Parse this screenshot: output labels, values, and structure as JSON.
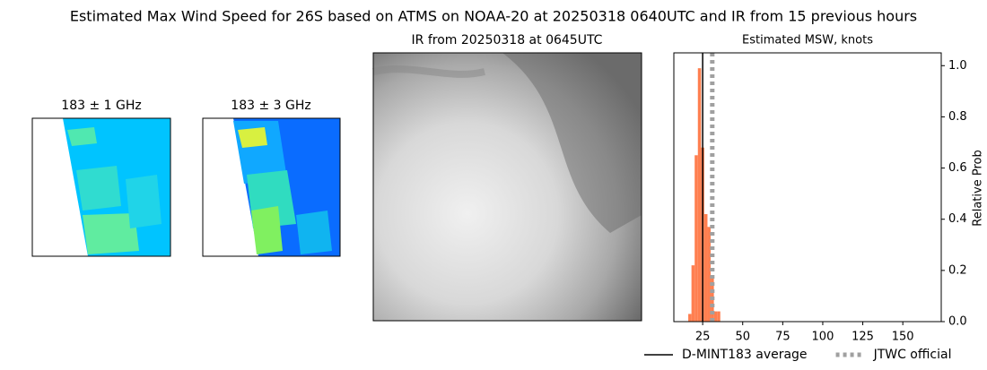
{
  "figure": {
    "title": "Estimated Max Wind Speed for 26S based on ATMS on NOAA-20 at 20250318 0640UTC and IR from 15 previous hours",
    "image_titles": [
      "183 ± 1 GHz",
      "183 ± 3 GHz",
      "IR from 20250318 at 0645UTC"
    ]
  },
  "chart_data": {
    "type": "histogram",
    "title": "Estimated MSW, knots",
    "y_label": "Relative Prob",
    "bins": [
      16,
      18,
      20,
      22,
      24,
      26,
      28,
      30,
      32,
      34,
      36
    ],
    "values": [
      0.03,
      0.22,
      0.65,
      0.99,
      0.68,
      0.42,
      0.37,
      0.18,
      0.04,
      0.04
    ],
    "color": "#ff7f50",
    "xlim": [
      7,
      174
    ],
    "xticks": [
      25,
      50,
      75,
      100,
      125,
      150
    ],
    "ylim": [
      0,
      1.05
    ],
    "yticks": [
      {
        "value": 0,
        "label": "0.0"
      },
      0.2,
      0.4,
      0.6,
      0.8,
      {
        "value": 1,
        "label": "1.0"
      }
    ],
    "y_axis_side": "right",
    "lines": [
      {
        "name": "D-MINT183 average",
        "color": "#000000",
        "style": "solid",
        "value": 25
      },
      {
        "name": "JTWC official",
        "color": "#a0a0a0",
        "style": "dotted",
        "value": 31
      }
    ]
  }
}
